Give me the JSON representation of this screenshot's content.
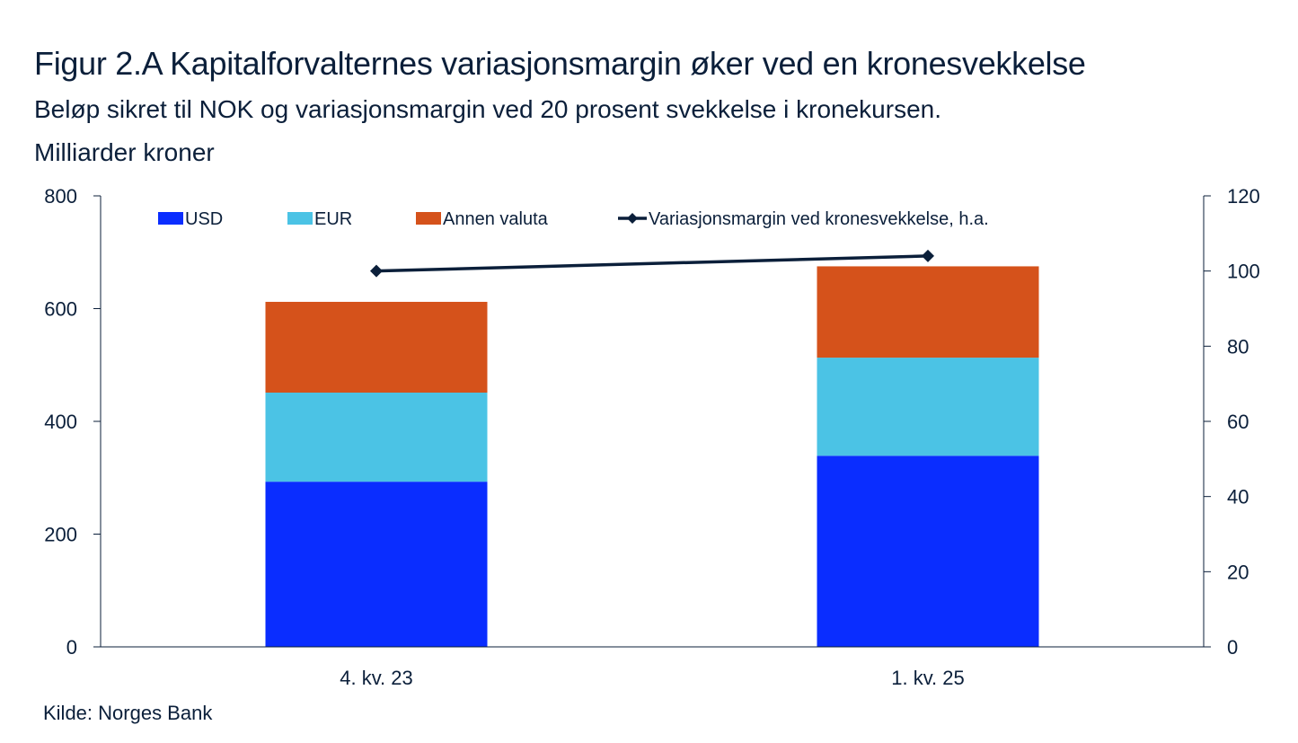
{
  "chart_data": {
    "type": "bar",
    "stacked": true,
    "title": "Figur 2.A Kapitalforvalternes variasjonsmargin øker ved en kronesvekkelse",
    "subtitle": "Beløp sikret til NOK og variasjonsmargin ved 20 prosent svekkelse i kronekursen.",
    "units": "Milliarder kroner",
    "source": "Kilde: Norges Bank",
    "categories": [
      "4. kv. 23",
      "1. kv. 25"
    ],
    "ylim": [
      0,
      800
    ],
    "y_ticks": [
      0,
      200,
      400,
      600,
      800
    ],
    "y2lim": [
      0,
      120
    ],
    "y2_ticks": [
      0,
      20,
      40,
      60,
      80,
      100,
      120
    ],
    "legend_position": "top",
    "grid": false,
    "series": [
      {
        "name": "USD",
        "color": "#0a2dff",
        "values": [
          293,
          339
        ]
      },
      {
        "name": "EUR",
        "color": "#4bc3e5",
        "values": [
          158,
          174
        ]
      },
      {
        "name": "Annen valuta",
        "color": "#d5521b",
        "values": [
          161,
          162
        ]
      }
    ],
    "line_series": {
      "name": "Variasjonsmargin ved kronesvekkelse, h.a.",
      "color": "#0b1f3a",
      "axis": "right",
      "values": [
        100,
        104
      ]
    }
  }
}
